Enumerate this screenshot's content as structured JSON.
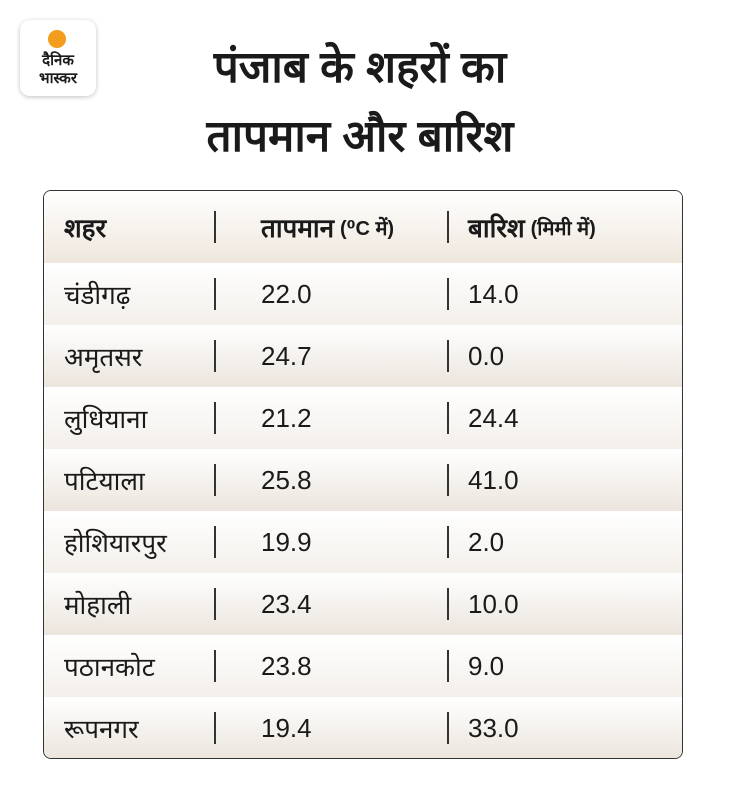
{
  "logo": {
    "line1": "दैनिक",
    "line2": "भास्कर"
  },
  "title": {
    "line1": "पंजाब के शहरों का",
    "line2": "तापमान और बारिश"
  },
  "table": {
    "header": [
      {
        "label": "शहर"
      },
      {
        "label": "तापमान",
        "unit": "(⁰C में)"
      },
      {
        "label": "बारिश",
        "unit": "(मिमी में)"
      }
    ],
    "rows": [
      [
        "चंडीगढ़",
        "22.0",
        "14.0"
      ],
      [
        "अमृतसर",
        "24.7",
        "0.0"
      ],
      [
        "लुधियाना",
        "21.2",
        "24.4"
      ],
      [
        "पटियाला",
        "25.8",
        "41.0"
      ],
      [
        "होशियारपुर",
        "19.9",
        "2.0"
      ],
      [
        "मोहाली",
        "23.4",
        "10.0"
      ],
      [
        "पठानकोट",
        "23.8",
        "9.0"
      ],
      [
        "रूपनगर",
        "19.4",
        "33.0"
      ]
    ]
  }
}
